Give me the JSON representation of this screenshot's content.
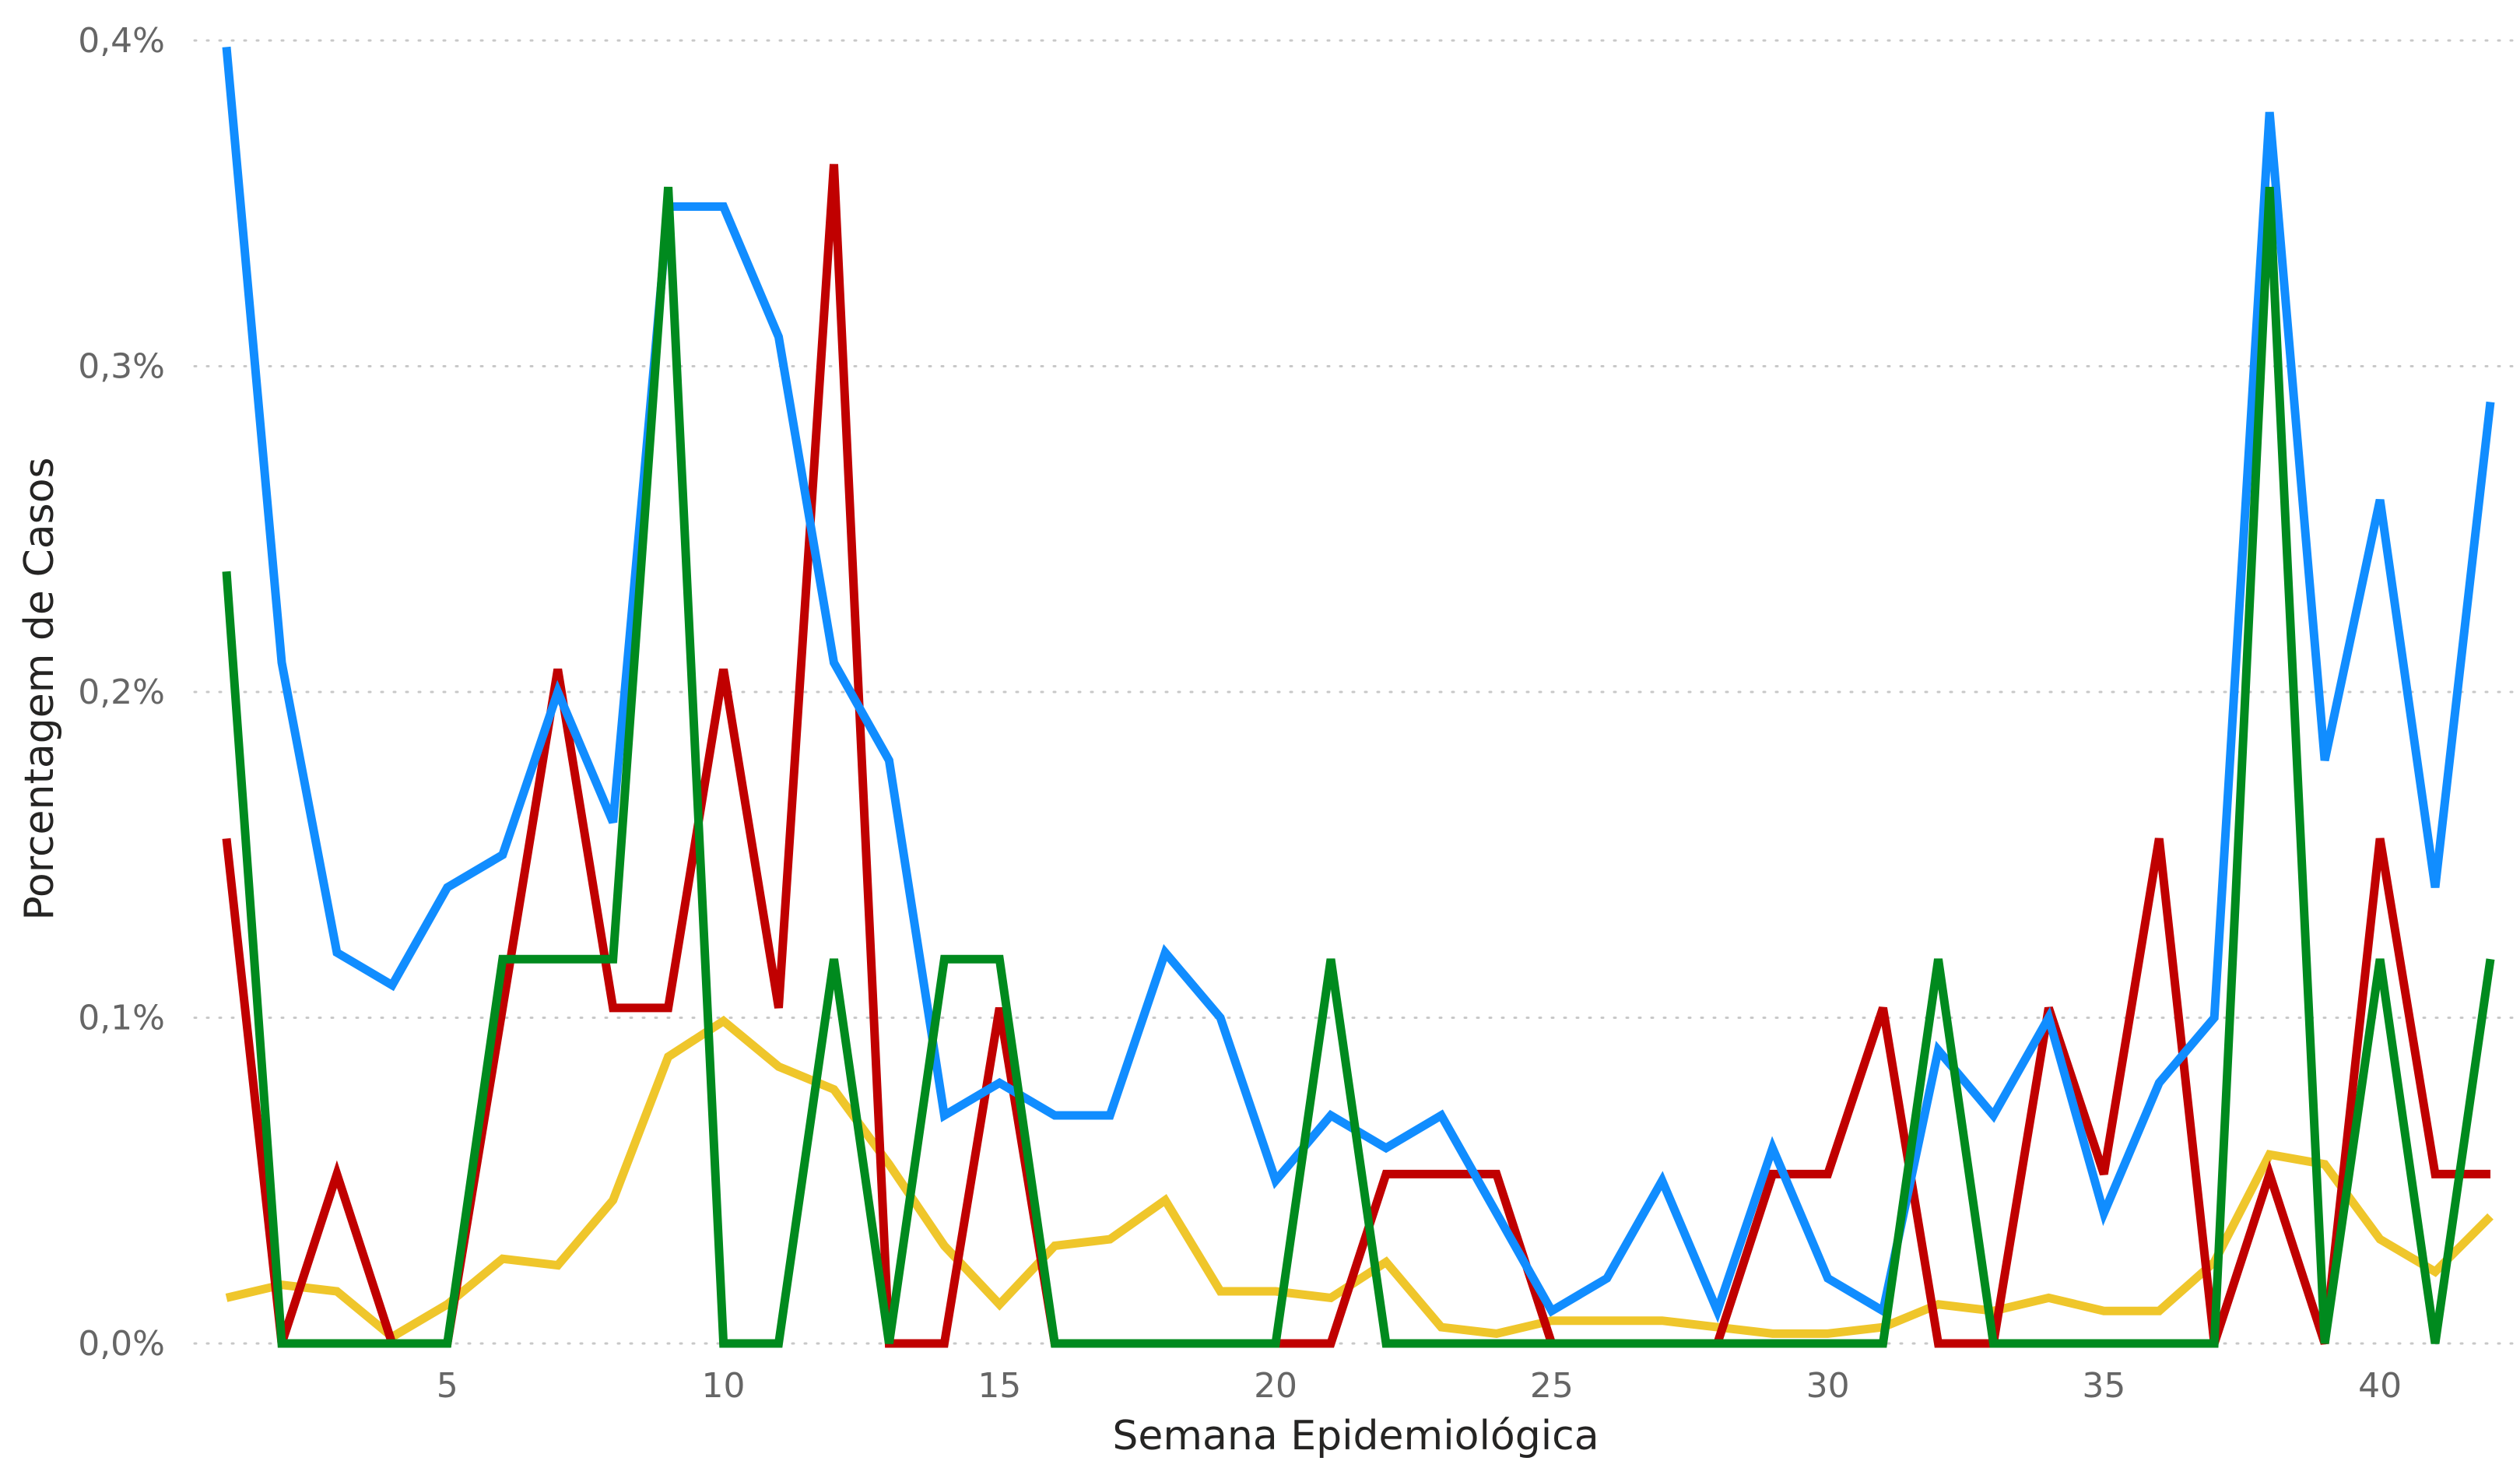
{
  "chart_data": {
    "type": "line",
    "title": "",
    "xlabel": "Semana Epidemiológica",
    "ylabel": "Porcentagem de Casos",
    "xlim": [
      1,
      42
    ],
    "ylim": [
      0,
      0.4
    ],
    "x_ticks": [
      5,
      10,
      15,
      20,
      25,
      30,
      35,
      40
    ],
    "y_ticks": [
      0,
      0.1,
      0.2,
      0.3,
      0.4
    ],
    "y_tick_labels": [
      "0,0%",
      "0,1%",
      "0,2%",
      "0,3%",
      "0,4%"
    ],
    "grid": "horizontal dotted",
    "legend": "none",
    "x": [
      1,
      2,
      3,
      4,
      5,
      6,
      7,
      8,
      9,
      10,
      11,
      12,
      13,
      14,
      15,
      16,
      17,
      18,
      19,
      20,
      21,
      22,
      23,
      24,
      25,
      26,
      27,
      28,
      29,
      30,
      31,
      32,
      33,
      34,
      35,
      36,
      37,
      38,
      39,
      40,
      41,
      42
    ],
    "series": [
      {
        "color": "#efc62b",
        "values": [
          0.014,
          0.018,
          0.016,
          0.002,
          0.012,
          0.026,
          0.024,
          0.044,
          0.088,
          0.099,
          0.085,
          0.078,
          0.055,
          0.03,
          0.012,
          0.03,
          0.032,
          0.044,
          0.016,
          0.016,
          0.014,
          0.025,
          0.005,
          0.003,
          0.007,
          0.007,
          0.007,
          0.005,
          0.003,
          0.003,
          0.005,
          0.012,
          0.01,
          0.014,
          0.01,
          0.01,
          0.025,
          0.058,
          0.055,
          0.032,
          0.022,
          0.039
        ]
      },
      {
        "color": "#c00000",
        "values": [
          0.155,
          0,
          0.052,
          0,
          0,
          0.103,
          0.207,
          0.103,
          0.103,
          0.207,
          0.103,
          0.362,
          0,
          0,
          0.103,
          0,
          0,
          0,
          0,
          0,
          0,
          0.052,
          0.052,
          0.052,
          0,
          0,
          0,
          0,
          0.052,
          0.052,
          0.103,
          0,
          0,
          0.103,
          0.052,
          0.155,
          0,
          0.052,
          0,
          0.155,
          0.052,
          0.052
        ]
      },
      {
        "color": "#118dff",
        "values": [
          0.398,
          0.209,
          0.12,
          0.11,
          0.14,
          0.15,
          0.2,
          0.16,
          0.349,
          0.349,
          0.309,
          0.209,
          0.179,
          0.07,
          0.08,
          0.07,
          0.07,
          0.12,
          0.1,
          0.05,
          0.07,
          0.06,
          0.07,
          0.04,
          0.01,
          0.02,
          0.05,
          0.01,
          0.06,
          0.02,
          0.01,
          0.09,
          0.07,
          0.1,
          0.04,
          0.08,
          0.1,
          0.378,
          0.179,
          0.259,
          0.14,
          0.289
        ]
      },
      {
        "color": "#008a1e",
        "values": [
          0.237,
          0,
          0,
          0,
          0,
          0.118,
          0.118,
          0.118,
          0.355,
          0,
          0,
          0.118,
          0,
          0.118,
          0.118,
          0,
          0,
          0,
          0,
          0,
          0.118,
          0,
          0,
          0,
          0,
          0,
          0,
          0,
          0,
          0,
          0,
          0.118,
          0,
          0,
          0,
          0,
          0,
          0.355,
          0,
          0.118,
          0,
          0.118
        ]
      }
    ]
  }
}
